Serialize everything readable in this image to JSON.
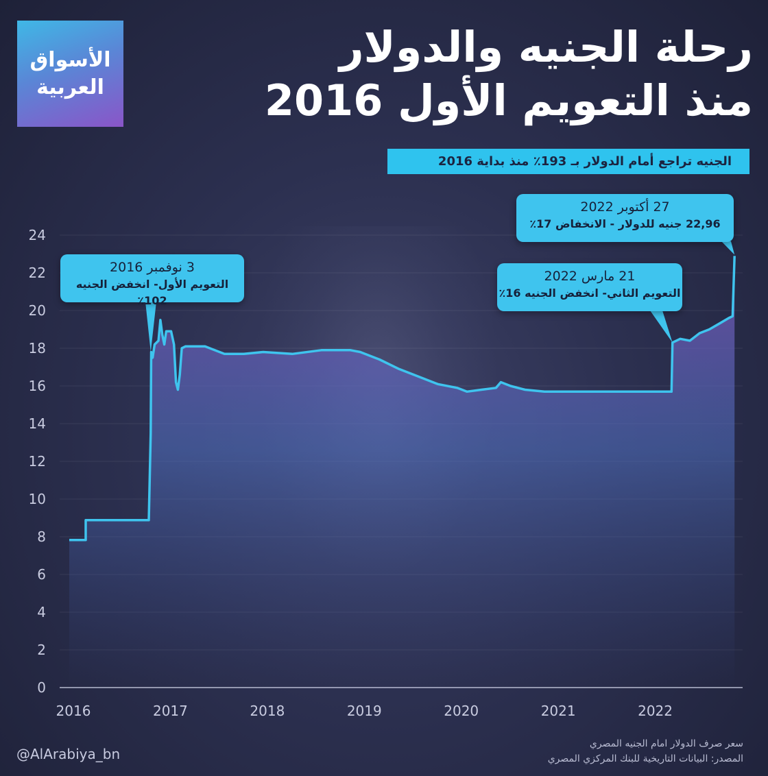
{
  "logo": {
    "line1": "الأسواق",
    "line2": "العربية"
  },
  "title": {
    "line1": "رحلة الجنيه والدولار",
    "line2": "منذ التعويم الأول 2016"
  },
  "subtitle": "الجنيه تراجع أمام الدولار بـ 193٪ منذ بداية 2016",
  "callouts": [
    {
      "date": "3 نوفمبر 2016",
      "desc": "التعويم الأول- انخفض الجنيه 102٪"
    },
    {
      "date": "21 مارس 2022",
      "desc": "التعويم الثاني- انخفض الجنيه 16٪"
    },
    {
      "date": "27 أكتوبر 2022",
      "desc": "22,96 جنيه للدولار - الانخفاض 17٪"
    }
  ],
  "footer": {
    "handle": "@AlArabiya_bn",
    "source_line1": "سعر صرف الدولار امام الجنيه المصري",
    "source_line2": "المصدر: البيانات التاريخية للبنك المركزي المصري"
  },
  "colors": {
    "line": "#3fc4ee",
    "callout": "#3fc4ee",
    "subtitle_bg": "#2fc3ee",
    "fill_top": "#6b4fa8",
    "fill_mid": "#4a6fb8"
  },
  "chart_data": {
    "type": "area",
    "title": "رحلة الجنيه والدولار منذ التعويم الأول 2016",
    "xlabel": "",
    "ylabel": "",
    "ylim": [
      0,
      24
    ],
    "xlim": [
      2016.0,
      2023.0
    ],
    "yticks": [
      0,
      2,
      4,
      6,
      8,
      10,
      12,
      14,
      16,
      18,
      20,
      22,
      24
    ],
    "xticks": [
      "2016",
      "2017",
      "2018",
      "2019",
      "2020",
      "2021",
      "2022"
    ],
    "grid": true,
    "series": [
      {
        "name": "",
        "points": [
          [
            2016.0,
            7.83
          ],
          [
            2016.17,
            7.83
          ],
          [
            2016.17,
            8.88
          ],
          [
            2016.82,
            8.88
          ],
          [
            2016.84,
            13.5
          ],
          [
            2016.845,
            17.8
          ],
          [
            2016.86,
            17.5
          ],
          [
            2016.88,
            18.2
          ],
          [
            2016.92,
            18.4
          ],
          [
            2016.94,
            19.5
          ],
          [
            2016.96,
            18.7
          ],
          [
            2016.98,
            18.2
          ],
          [
            2017.0,
            18.9
          ],
          [
            2017.05,
            18.9
          ],
          [
            2017.08,
            18.2
          ],
          [
            2017.1,
            16.2
          ],
          [
            2017.12,
            15.8
          ],
          [
            2017.14,
            16.6
          ],
          [
            2017.16,
            18.0
          ],
          [
            2017.2,
            18.1
          ],
          [
            2017.4,
            18.1
          ],
          [
            2017.5,
            17.9
          ],
          [
            2017.6,
            17.7
          ],
          [
            2017.8,
            17.7
          ],
          [
            2018.0,
            17.8
          ],
          [
            2018.3,
            17.7
          ],
          [
            2018.6,
            17.9
          ],
          [
            2018.9,
            17.9
          ],
          [
            2019.0,
            17.8
          ],
          [
            2019.2,
            17.4
          ],
          [
            2019.4,
            16.9
          ],
          [
            2019.6,
            16.5
          ],
          [
            2019.8,
            16.1
          ],
          [
            2020.0,
            15.9
          ],
          [
            2020.1,
            15.7
          ],
          [
            2020.25,
            15.8
          ],
          [
            2020.4,
            15.9
          ],
          [
            2020.45,
            16.2
          ],
          [
            2020.55,
            16.0
          ],
          [
            2020.7,
            15.8
          ],
          [
            2020.9,
            15.7
          ],
          [
            2021.2,
            15.7
          ],
          [
            2021.6,
            15.7
          ],
          [
            2022.0,
            15.7
          ],
          [
            2022.21,
            15.7
          ],
          [
            2022.22,
            18.3
          ],
          [
            2022.3,
            18.5
          ],
          [
            2022.4,
            18.4
          ],
          [
            2022.5,
            18.8
          ],
          [
            2022.6,
            19.0
          ],
          [
            2022.7,
            19.3
          ],
          [
            2022.8,
            19.6
          ],
          [
            2022.84,
            19.7
          ],
          [
            2022.86,
            22.9
          ]
        ]
      }
    ],
    "annotations": [
      {
        "x": 2016.84,
        "y": 17.8,
        "text": "3 نوفمبر 2016"
      },
      {
        "x": 2022.22,
        "y": 18.3,
        "text": "21 مارس 2022"
      },
      {
        "x": 2022.86,
        "y": 22.96,
        "text": "27 أكتوبر 2022"
      }
    ]
  }
}
